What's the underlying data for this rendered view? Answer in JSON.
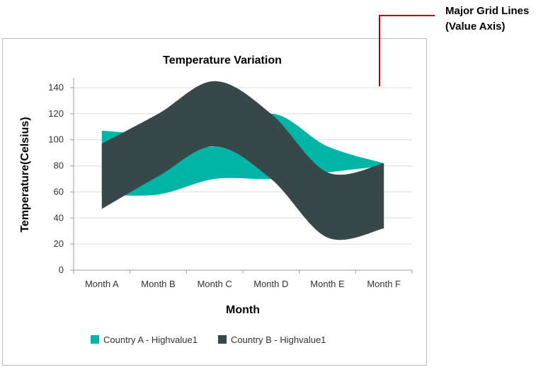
{
  "callout": {
    "lines": [
      "Major Grid Lines",
      "(Value Axis)"
    ],
    "color": "#c00000"
  },
  "chart_data": {
    "type": "area",
    "subtype": "spline-range",
    "title": "Temperature Variation",
    "xlabel": "Month",
    "ylabel": "Temperature(Celsius)",
    "categories": [
      "Month A",
      "Month B",
      "Month C",
      "Month D",
      "Month E",
      "Month F"
    ],
    "ylim": [
      0,
      140
    ],
    "yticks": [
      0,
      20,
      40,
      60,
      80,
      100,
      120,
      140
    ],
    "grid": true,
    "legend_position": "bottom-left",
    "series": [
      {
        "name": "Country A - Highvalue1",
        "color": "#00b5a5",
        "high": [
          107,
          103,
          95,
          120,
          95,
          82
        ],
        "low": [
          58,
          58,
          70,
          70,
          75,
          80
        ]
      },
      {
        "name": "Country B - Highvalue1",
        "color": "#37474a",
        "high": [
          97,
          120,
          145,
          120,
          75,
          82
        ],
        "low": [
          47,
          72,
          95,
          70,
          25,
          32
        ]
      }
    ]
  }
}
